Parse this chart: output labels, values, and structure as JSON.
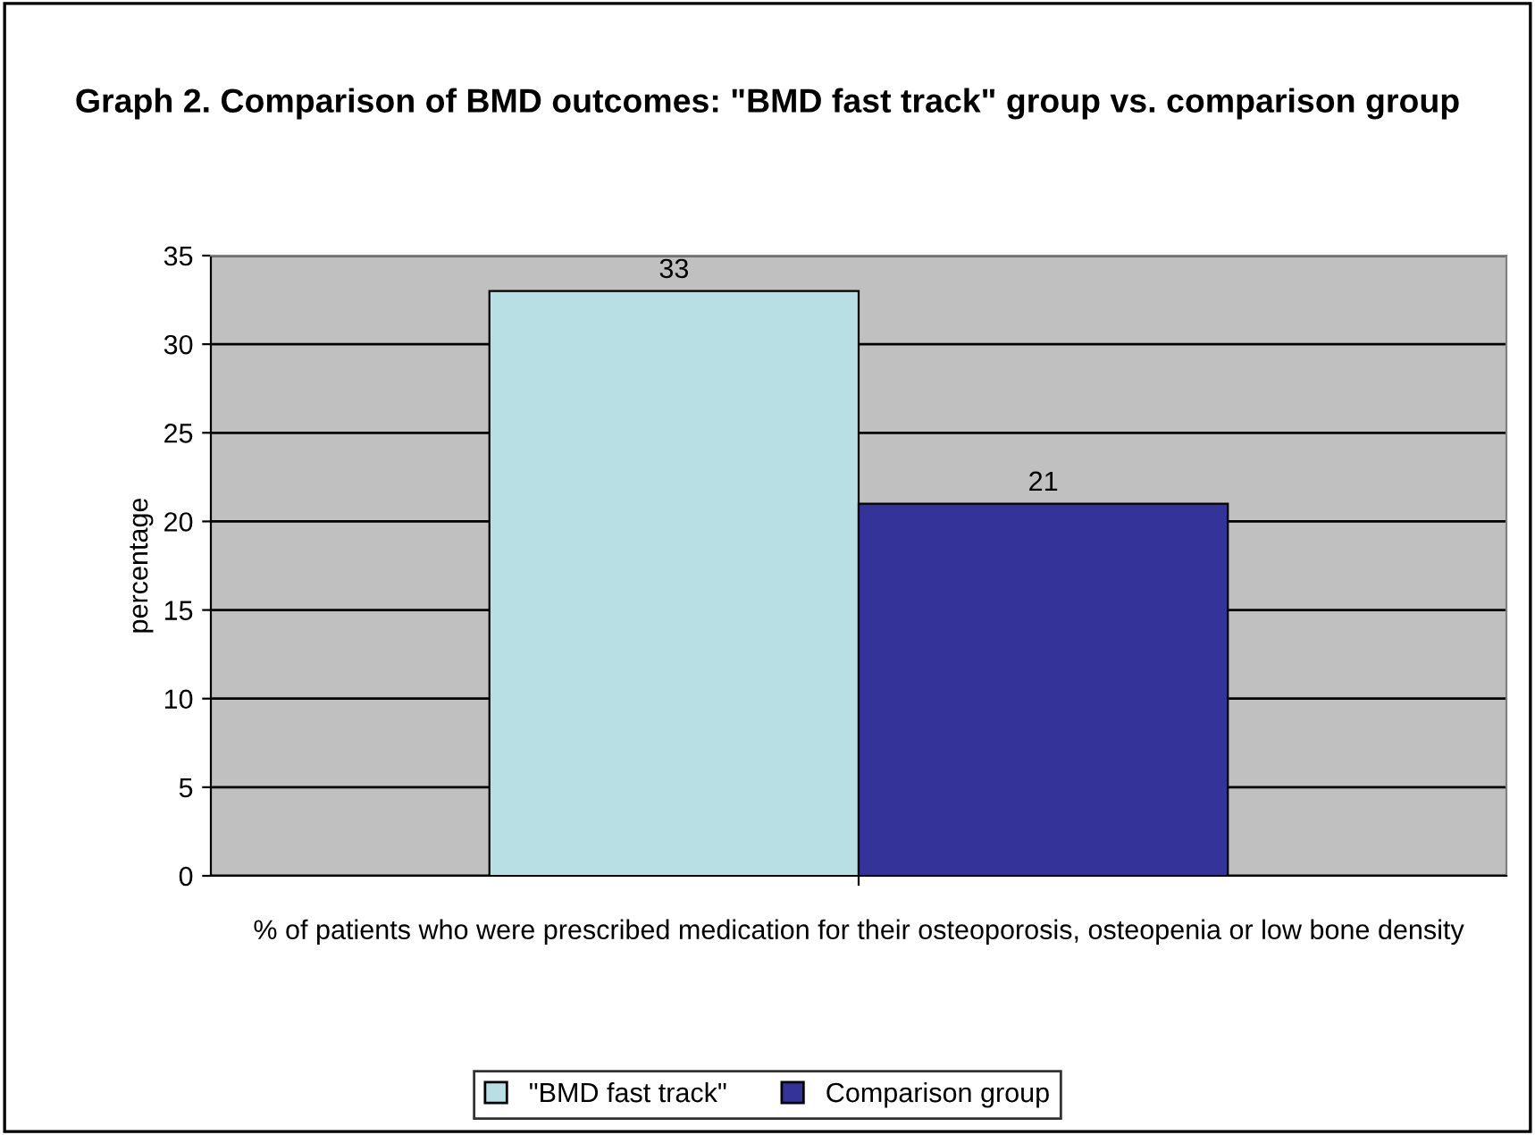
{
  "chart_data": {
    "type": "bar",
    "title": "Graph 2. Comparison of BMD outcomes: \"BMD fast track\" group vs. comparison group",
    "categories": [
      null
    ],
    "xlabel": "% of patients who were prescribed medication for their osteoporosis, osteopenia or low bone density",
    "ylabel": "percentage",
    "series": [
      {
        "name": "\"BMD fast track\"",
        "color": "#b8e0e4",
        "values": [
          33
        ]
      },
      {
        "name": "Comparison group",
        "color": "#333399",
        "values": [
          21
        ]
      }
    ],
    "ylim": [
      0,
      35
    ],
    "yticks": [
      0,
      5,
      10,
      15,
      20,
      25,
      30,
      35
    ],
    "grid": "y",
    "legend": "bottom",
    "data_labels": true
  }
}
